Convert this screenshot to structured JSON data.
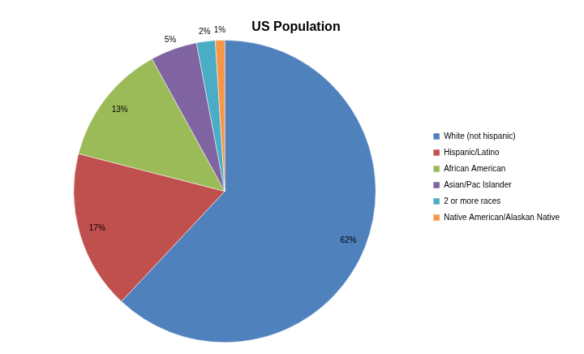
{
  "chart_data": {
    "type": "pie",
    "title": "US Population",
    "categories": [
      "White (not hispanic)",
      "Hispanic/Latino",
      "African American",
      "Asian/Pac Islander",
      "2 or more races",
      "Native American/Alaskan Native"
    ],
    "values": [
      62,
      17,
      13,
      5,
      2,
      1
    ],
    "value_labels": [
      "62%",
      "17%",
      "13%",
      "5%",
      "2%",
      "1%"
    ],
    "colors": [
      "#4f81bd",
      "#c0504d",
      "#9bbb59",
      "#8064a2",
      "#4bacc6",
      "#f79646"
    ],
    "legend": "right",
    "data_labels": true
  }
}
